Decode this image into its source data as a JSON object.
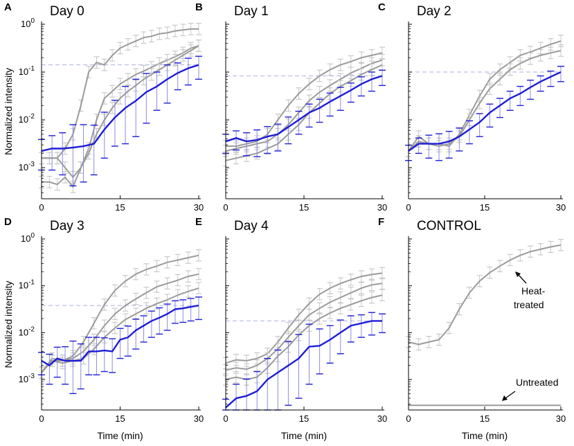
{
  "chart_data": {
    "type": "line",
    "y_scale": "log",
    "colors": {
      "treatment": "#1c1cd6",
      "treatment_err": "#8a8ae6",
      "reference": "#9a9a9a",
      "reference_err": "#c8c8c8",
      "threshold": "#aab0dd"
    },
    "x_ticks": [
      "0",
      "15",
      "30"
    ],
    "y_ticks": [
      "10^{0}",
      "10^{-1}",
      "10^{-2}",
      "10^{-3}"
    ],
    "xlabel": "Time (min)",
    "ylabel": "Normalized intensity",
    "panels": [
      {
        "letter": "A",
        "title": "Day 0",
        "xlim": [
          0,
          30
        ],
        "ylim_log10": [
          -3.65,
          0
        ],
        "threshold_log10": -0.85,
        "reference_series": [
          {
            "name": "gray 1",
            "x": [
              0,
              1.5,
              3,
              4.5,
              6,
              7.5,
              9,
              10.5,
              12,
              13.5,
              15,
              16.5,
              18,
              19.5,
              21,
              22.5,
              24,
              25.5,
              27,
              28.5,
              30
            ],
            "log10": [
              -2.8,
              -2.8,
              -2.8,
              -2.6,
              -2.3,
              -1.7,
              -1.0,
              -0.8,
              -0.85,
              -0.65,
              -0.5,
              -0.42,
              -0.35,
              -0.28,
              -0.25,
              -0.2,
              -0.18,
              -0.14,
              -0.12,
              -0.1,
              -0.1
            ]
          },
          {
            "name": "gray 2",
            "x": [
              0,
              1.5,
              3,
              4.5,
              6,
              7.5,
              9,
              10.5,
              12,
              13.5,
              15,
              16.5,
              18,
              19.5,
              21,
              22.5,
              24,
              25.5,
              27,
              28.5,
              30
            ],
            "log10": [
              -2.8,
              -2.8,
              -2.8,
              -3.0,
              -3.2,
              -3.0,
              -2.6,
              -2.0,
              -1.55,
              -1.4,
              -1.25,
              -1.15,
              -1.05,
              -0.98,
              -0.9,
              -0.82,
              -0.75,
              -0.68,
              -0.6,
              -0.5,
              -0.45
            ]
          },
          {
            "name": "gray 3",
            "x": [
              0,
              1.5,
              3,
              4.5,
              6,
              7.5,
              9,
              10.5,
              12,
              13.5,
              15,
              16.5,
              18,
              19.5,
              21,
              22.5,
              24,
              25.5,
              27,
              28.5,
              30
            ],
            "log10": [
              -3.3,
              -3.3,
              -3.35,
              -3.2,
              -3.4,
              -3.0,
              -2.7,
              -2.3,
              -2.0,
              -1.75,
              -1.55,
              -1.4,
              -1.28,
              -1.15,
              -1.05,
              -0.95,
              -0.85,
              -0.75,
              -0.65,
              -0.55,
              -0.45
            ]
          }
        ],
        "treatment_series": {
          "name": "blue",
          "x": [
            0,
            2,
            4,
            6,
            8,
            10,
            12,
            14,
            16,
            18,
            20,
            22,
            24,
            26,
            28,
            30
          ],
          "log10": [
            -2.65,
            -2.6,
            -2.6,
            -2.58,
            -2.55,
            -2.5,
            -2.2,
            -1.95,
            -1.75,
            -1.6,
            -1.42,
            -1.3,
            -1.15,
            -1.02,
            -0.92,
            -0.85
          ],
          "err_log10": [
            0.4,
            0.45,
            0.55,
            0.8,
            0.75,
            0.65,
            0.6,
            0.6,
            0.75,
            0.75,
            0.65,
            0.5,
            0.5,
            0.35,
            0.35,
            0.3
          ]
        }
      },
      {
        "letter": "B",
        "title": "Day 1",
        "xlim": [
          0,
          30
        ],
        "ylim_log10": [
          -3.65,
          0
        ],
        "threshold_log10": -1.08,
        "reference_series": [
          {
            "name": "gray 1",
            "x": [
              0,
              2,
              4,
              6,
              8,
              10,
              12,
              14,
              16,
              18,
              20,
              22,
              24,
              26,
              28,
              30
            ],
            "log10": [
              -2.55,
              -2.55,
              -2.5,
              -2.45,
              -2.3,
              -2.0,
              -1.7,
              -1.45,
              -1.25,
              -1.08,
              -0.95,
              -0.85,
              -0.78,
              -0.7,
              -0.65,
              -0.6
            ]
          },
          {
            "name": "gray 2",
            "x": [
              0,
              2,
              4,
              6,
              8,
              10,
              12,
              14,
              16,
              18,
              20,
              22,
              24,
              26,
              28,
              30
            ],
            "log10": [
              -2.65,
              -2.6,
              -2.55,
              -2.5,
              -2.45,
              -2.3,
              -2.1,
              -1.85,
              -1.6,
              -1.42,
              -1.28,
              -1.15,
              -1.02,
              -0.92,
              -0.82,
              -0.75
            ]
          },
          {
            "name": "gray 3",
            "x": [
              0,
              2,
              4,
              6,
              8,
              10,
              12,
              14,
              16,
              18,
              20,
              22,
              24,
              26,
              28,
              30
            ],
            "log10": [
              -2.85,
              -2.8,
              -2.75,
              -2.7,
              -2.6,
              -2.5,
              -2.3,
              -2.1,
              -1.85,
              -1.65,
              -1.45,
              -1.3,
              -1.18,
              -1.05,
              -0.95,
              -0.85
            ]
          }
        ],
        "treatment_series": {
          "name": "blue",
          "x": [
            0,
            2,
            4,
            6,
            8,
            10,
            12,
            14,
            16,
            18,
            20,
            22,
            24,
            26,
            28,
            30
          ],
          "log10": [
            -2.45,
            -2.38,
            -2.45,
            -2.42,
            -2.35,
            -2.3,
            -2.15,
            -2.0,
            -1.85,
            -1.75,
            -1.62,
            -1.5,
            -1.38,
            -1.25,
            -1.15,
            -1.08
          ],
          "err_log10": [
            0.25,
            0.25,
            0.3,
            0.35,
            0.35,
            0.35,
            0.35,
            0.3,
            0.3,
            0.3,
            0.3,
            0.3,
            0.25,
            0.25,
            0.25,
            0.2
          ]
        }
      },
      {
        "letter": "C",
        "title": "Day 2",
        "xlim": [
          0,
          30
        ],
        "ylim_log10": [
          -3.65,
          0
        ],
        "threshold_log10": -1.0,
        "reference_series": [
          {
            "name": "gray 1",
            "x": [
              0,
              2,
              4,
              6,
              8,
              10,
              12,
              14,
              16,
              18,
              20,
              22,
              24,
              26,
              28,
              30
            ],
            "log10": [
              -2.65,
              -2.35,
              -2.5,
              -2.5,
              -2.55,
              -2.3,
              -1.9,
              -1.5,
              -1.15,
              -0.95,
              -0.8,
              -0.65,
              -0.58,
              -0.5,
              -0.42,
              -0.35
            ]
          },
          {
            "name": "gray 2",
            "x": [
              0,
              2,
              4,
              6,
              8,
              10,
              12,
              14,
              16,
              18,
              20,
              22,
              24,
              26,
              28,
              30
            ],
            "log10": [
              -2.65,
              -2.45,
              -2.5,
              -2.55,
              -2.5,
              -2.35,
              -2.0,
              -1.65,
              -1.35,
              -1.15,
              -0.95,
              -0.82,
              -0.72,
              -0.65,
              -0.6,
              -0.55
            ]
          }
        ],
        "treatment_series": {
          "name": "blue",
          "x": [
            0,
            2,
            4,
            6,
            8,
            10,
            12,
            14,
            16,
            18,
            20,
            22,
            24,
            26,
            28,
            30
          ],
          "log10": [
            -2.65,
            -2.5,
            -2.5,
            -2.5,
            -2.45,
            -2.35,
            -2.2,
            -2.05,
            -1.85,
            -1.7,
            -1.55,
            -1.45,
            -1.32,
            -1.2,
            -1.1,
            -1.0
          ],
          "err_log10": [
            0.2,
            0.2,
            0.3,
            0.35,
            0.35,
            0.3,
            0.3,
            0.3,
            0.3,
            0.25,
            0.25,
            0.25,
            0.25,
            0.2,
            0.2,
            0.2
          ]
        }
      },
      {
        "letter": "D",
        "title": "Day 3",
        "xlim": [
          0,
          30
        ],
        "ylim_log10": [
          -3.65,
          0
        ],
        "threshold_log10": -1.42,
        "reference_series": [
          {
            "name": "gray 1",
            "x": [
              0,
              2,
              4,
              6,
              8,
              10,
              12,
              14,
              16,
              18,
              20,
              22,
              24,
              26,
              28,
              30
            ],
            "log10": [
              -2.85,
              -2.6,
              -2.6,
              -2.5,
              -2.2,
              -1.8,
              -1.4,
              -1.1,
              -0.9,
              -0.75,
              -0.65,
              -0.58,
              -0.5,
              -0.45,
              -0.4,
              -0.35
            ]
          },
          {
            "name": "gray 2",
            "x": [
              0,
              2,
              4,
              6,
              8,
              10,
              12,
              14,
              16,
              18,
              20,
              22,
              24,
              26,
              28,
              30
            ],
            "log10": [
              -2.85,
              -2.55,
              -2.6,
              -2.55,
              -2.4,
              -2.15,
              -1.85,
              -1.6,
              -1.42,
              -1.28,
              -1.15,
              -1.02,
              -0.95,
              -0.88,
              -0.8,
              -0.75
            ]
          },
          {
            "name": "gray 3",
            "x": [
              0,
              2,
              4,
              6,
              8,
              10,
              12,
              14,
              16,
              18,
              20,
              22,
              24,
              26,
              28,
              30
            ],
            "log10": [
              -2.85,
              -2.6,
              -2.65,
              -2.6,
              -2.55,
              -2.35,
              -2.1,
              -1.9,
              -1.72,
              -1.6,
              -1.48,
              -1.38,
              -1.3,
              -1.2,
              -1.12,
              -1.05
            ]
          }
        ],
        "treatment_series": {
          "name": "blue",
          "x": [
            0,
            1.5,
            3,
            4.5,
            6,
            7.5,
            9,
            10.5,
            12,
            13.5,
            15,
            16.5,
            18,
            19.5,
            21,
            22.5,
            24,
            25.5,
            27,
            28.5,
            30
          ],
          "log10": [
            -2.6,
            -2.7,
            -2.55,
            -2.6,
            -2.6,
            -2.6,
            -2.4,
            -2.4,
            -2.38,
            -2.4,
            -2.15,
            -2.1,
            -1.95,
            -1.85,
            -1.75,
            -1.68,
            -1.6,
            -1.5,
            -1.48,
            -1.45,
            -1.42
          ],
          "err_log10": [
            0.3,
            0.4,
            0.4,
            0.5,
            0.7,
            0.6,
            0.5,
            0.5,
            0.45,
            0.45,
            0.4,
            0.4,
            0.4,
            0.35,
            0.35,
            0.35,
            0.35,
            0.3,
            0.3,
            0.3,
            0.3
          ]
        }
      },
      {
        "letter": "E",
        "title": "Day 4",
        "xlim": [
          0,
          30
        ],
        "ylim_log10": [
          -3.65,
          0
        ],
        "threshold_log10": -1.75,
        "reference_series": [
          {
            "name": "gray 1",
            "x": [
              0,
              2,
              4,
              6,
              8,
              10,
              12,
              14,
              16,
              18,
              20,
              22,
              24,
              26,
              28,
              30
            ],
            "log10": [
              -2.65,
              -2.58,
              -2.6,
              -2.55,
              -2.45,
              -2.2,
              -1.9,
              -1.62,
              -1.38,
              -1.18,
              -1.05,
              -0.95,
              -0.87,
              -0.8,
              -0.76,
              -0.73
            ]
          },
          {
            "name": "gray 2",
            "x": [
              0,
              2,
              4,
              6,
              8,
              10,
              12,
              14,
              16,
              18,
              20,
              22,
              24,
              26,
              28,
              30
            ],
            "log10": [
              -2.8,
              -2.75,
              -2.78,
              -2.7,
              -2.55,
              -2.35,
              -2.1,
              -1.85,
              -1.62,
              -1.48,
              -1.35,
              -1.25,
              -1.15,
              -1.05,
              -0.98,
              -0.95
            ]
          },
          {
            "name": "gray 3",
            "x": [
              0,
              2,
              4,
              6,
              8,
              10,
              12,
              14,
              16,
              18,
              20,
              22,
              24,
              26,
              28,
              30
            ],
            "log10": [
              -3.0,
              -2.95,
              -3.0,
              -2.95,
              -2.75,
              -2.5,
              -2.3,
              -2.05,
              -1.85,
              -1.7,
              -1.58,
              -1.48,
              -1.4,
              -1.32,
              -1.25,
              -1.2
            ]
          }
        ],
        "treatment_series": {
          "name": "blue",
          "x": [
            0,
            2,
            4,
            6,
            8,
            10,
            12,
            14,
            16,
            18,
            20,
            22,
            24,
            26,
            28,
            30
          ],
          "log10": [
            -3.6,
            -3.4,
            -3.35,
            -3.25,
            -3.0,
            -2.85,
            -2.7,
            -2.55,
            -2.3,
            -2.28,
            -2.15,
            -2.0,
            -1.85,
            -1.8,
            -1.75,
            -1.75
          ],
          "err_log10": [
            0.3,
            0.5,
            0.6,
            0.7,
            0.75,
            0.8,
            0.85,
            0.85,
            0.8,
            0.6,
            0.5,
            0.45,
            0.35,
            0.3,
            0.3,
            0.25
          ]
        }
      },
      {
        "letter": "F",
        "title": "CONTROL",
        "xlim": [
          0,
          30
        ],
        "ylim_log10": [
          -3.65,
          0
        ],
        "threshold_log10": null,
        "reference_series": [
          {
            "name": "Heat-treated",
            "x": [
              0,
              2,
              4,
              6,
              8,
              10,
              12,
              14,
              16,
              18,
              20,
              22,
              24,
              26,
              28,
              30
            ],
            "log10": [
              -2.2,
              -2.25,
              -2.2,
              -2.15,
              -1.9,
              -1.5,
              -1.15,
              -0.9,
              -0.72,
              -0.58,
              -0.45,
              -0.35,
              -0.27,
              -0.22,
              -0.17,
              -0.13
            ]
          },
          {
            "name": "Untreated",
            "x": [
              0,
              30
            ],
            "log10": [
              -3.55,
              -3.55
            ]
          }
        ],
        "treatment_series": null
      }
    ],
    "annotations": [
      {
        "panel": "F",
        "text_lines": [
          "Heat-",
          "treated"
        ],
        "points_to": "Heat-treated"
      },
      {
        "panel": "F",
        "text_lines": [
          "Untreated"
        ],
        "points_to": "Untreated"
      }
    ]
  }
}
